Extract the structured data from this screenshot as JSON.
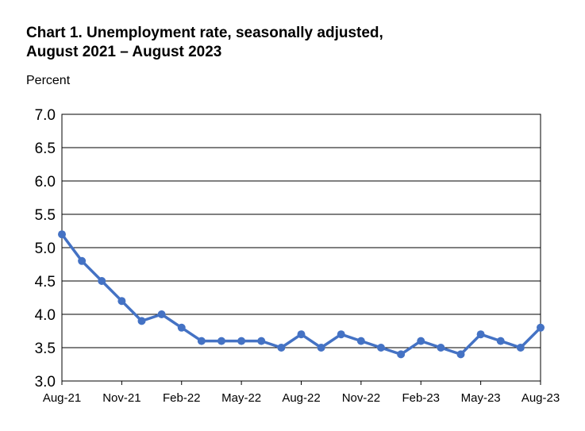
{
  "chart_data": {
    "type": "line",
    "title_line1": "Chart 1. Unemployment rate, seasonally adjusted,",
    "title_line2": "August 2021 – August 2023",
    "ylabel": "Percent",
    "xlabel": "",
    "ylim": [
      3.0,
      7.0
    ],
    "y_ticks": [
      "3.0",
      "3.5",
      "4.0",
      "4.5",
      "5.0",
      "5.5",
      "6.0",
      "6.5",
      "7.0"
    ],
    "x_tick_labels": [
      "Aug-21",
      "Nov-21",
      "Feb-22",
      "May-22",
      "Aug-22",
      "Nov-22",
      "Feb-23",
      "May-23",
      "Aug-23"
    ],
    "grid": true,
    "line_color": "#4472C4",
    "series": [
      {
        "x": [
          "Aug-21",
          "Sep-21",
          "Oct-21",
          "Nov-21",
          "Dec-21",
          "Jan-22",
          "Feb-22",
          "Mar-22",
          "Apr-22",
          "May-22",
          "Jun-22",
          "Jul-22",
          "Aug-22",
          "Sep-22",
          "Oct-22",
          "Nov-22",
          "Dec-22",
          "Jan-23",
          "Feb-23",
          "Mar-23",
          "Apr-23",
          "May-23",
          "Jun-23",
          "Jul-23",
          "Aug-23"
        ],
        "values": [
          5.2,
          4.8,
          4.5,
          4.2,
          3.9,
          4.0,
          3.8,
          3.6,
          3.6,
          3.6,
          3.6,
          3.5,
          3.7,
          3.5,
          3.7,
          3.6,
          3.5,
          3.4,
          3.6,
          3.5,
          3.4,
          3.7,
          3.6,
          3.5,
          3.8
        ]
      }
    ]
  }
}
